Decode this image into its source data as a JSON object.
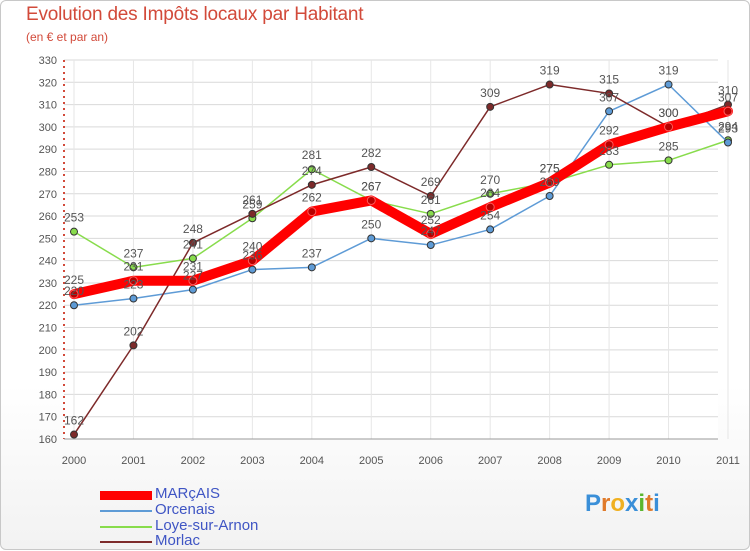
{
  "title": "Evolution des Impôts locaux par Habitant",
  "subtitle": "(en € et par an)",
  "logo_text": "Proxiti",
  "chart_data": {
    "type": "line",
    "title": "Evolution des Impôts locaux par Habitant",
    "subtitle": "(en € et par an)",
    "xlabel": "",
    "ylabel": "",
    "ylim": [
      160,
      330
    ],
    "yticks": [
      160,
      170,
      180,
      190,
      200,
      210,
      220,
      230,
      240,
      250,
      260,
      270,
      280,
      290,
      300,
      310,
      320,
      330
    ],
    "categories": [
      "2000",
      "2001",
      "2002",
      "2003",
      "2004",
      "2005",
      "2006",
      "2007",
      "2008",
      "2009",
      "2010",
      "2011"
    ],
    "grid": true,
    "legend_position": "bottom-left",
    "series": [
      {
        "name": "MARçAIS",
        "color": "#ff0000",
        "values": [
          225,
          231,
          231,
          240,
          262,
          267,
          252,
          264,
          275,
          292,
          300,
          307
        ]
      },
      {
        "name": "Orcenais",
        "color": "#5e9bd6",
        "values": [
          220,
          223,
          227,
          236,
          237,
          250,
          247,
          254,
          269,
          307,
          319,
          293
        ]
      },
      {
        "name": "Loye-sur-Arnon",
        "color": "#88dc4c",
        "values": [
          253,
          237,
          241,
          259,
          281,
          267,
          261,
          270,
          275,
          283,
          285,
          294
        ]
      },
      {
        "name": "Morlac",
        "color": "#7d2a2a",
        "values": [
          162,
          202,
          248,
          261,
          274,
          282,
          269,
          309,
          319,
          315,
          300,
          310
        ]
      }
    ]
  }
}
